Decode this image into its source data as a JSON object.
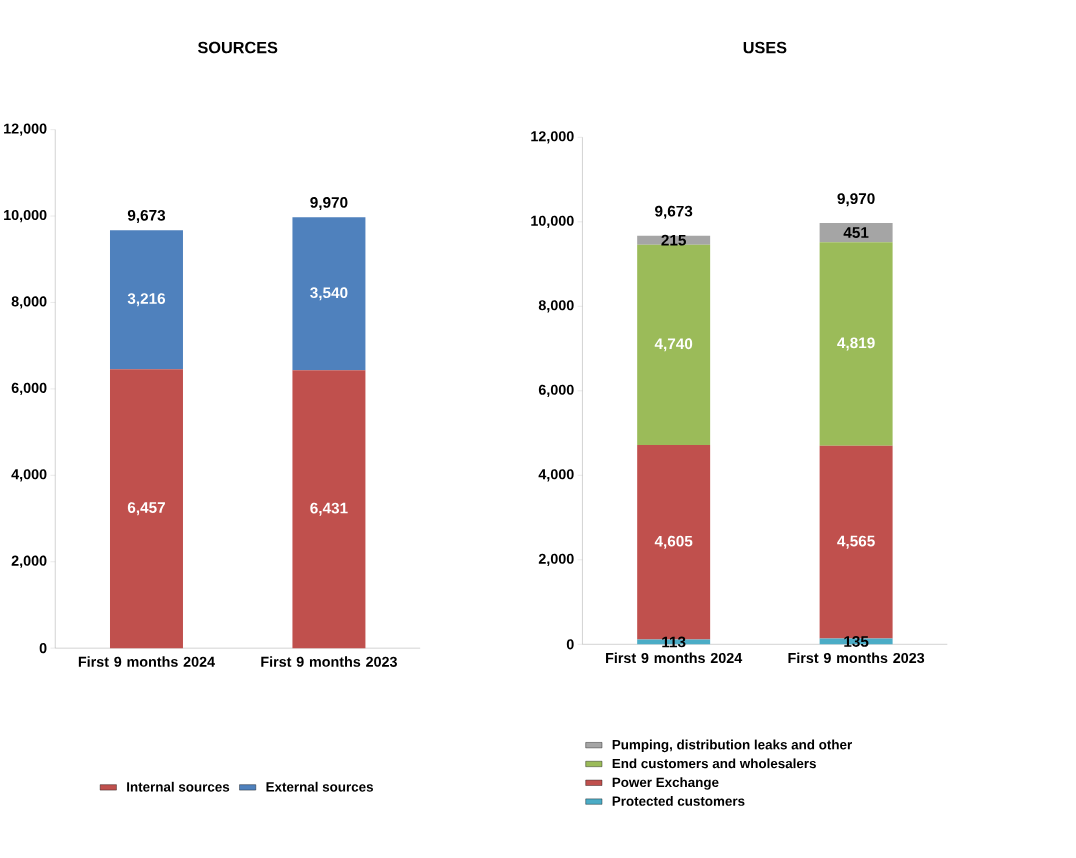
{
  "chart_data": [
    {
      "type": "bar",
      "stacked": true,
      "title": "SOURCES",
      "categories": [
        "First 9 months 2024",
        "First 9 months 2023"
      ],
      "series": [
        {
          "name": "Internal sources",
          "color": "#c0504d",
          "values": [
            6457,
            6431
          ],
          "value_labels": [
            "6,457",
            "6,431"
          ]
        },
        {
          "name": "External sources",
          "color": "#4f81bd",
          "values": [
            3216,
            3540
          ],
          "value_labels": [
            "3,216",
            "3,540"
          ]
        }
      ],
      "totals": [
        "9,673",
        "9,970"
      ],
      "ylim": [
        0,
        12000
      ],
      "yticks": [
        {
          "value": 0,
          "label": "0"
        },
        {
          "value": 2000,
          "label": "2,000"
        },
        {
          "value": 4000,
          "label": "4,000"
        },
        {
          "value": 6000,
          "label": "6,000"
        },
        {
          "value": 8000,
          "label": "8,000"
        },
        {
          "value": 10000,
          "label": "10,000"
        },
        {
          "value": 12000,
          "label": "12,000"
        }
      ],
      "legend": "bottom"
    },
    {
      "type": "bar",
      "stacked": true,
      "title": "USES",
      "categories": [
        "First 9 months 2024",
        "First 9 months 2023"
      ],
      "series": [
        {
          "name": "Protected customers",
          "color": "#4bacc6",
          "values": [
            113,
            135
          ],
          "value_labels": [
            "113",
            "135"
          ]
        },
        {
          "name": "Power Exchange",
          "color": "#c0504d",
          "values": [
            4605,
            4565
          ],
          "value_labels": [
            "4,605",
            "4,565"
          ]
        },
        {
          "name": "End customers and wholesalers",
          "color": "#9bbb59",
          "values": [
            4740,
            4819
          ],
          "value_labels": [
            "4,740",
            "4,819"
          ]
        },
        {
          "name": "Pumping, distribution leaks and other",
          "color": "#a5a5a5",
          "values": [
            215,
            451
          ],
          "value_labels": [
            "215",
            "451"
          ]
        }
      ],
      "totals": [
        "9,673",
        "9,970"
      ],
      "ylim": [
        0,
        12000
      ],
      "yticks": [
        {
          "value": 0,
          "label": "0"
        },
        {
          "value": 2000,
          "label": "2,000"
        },
        {
          "value": 4000,
          "label": "4,000"
        },
        {
          "value": 6000,
          "label": "6,000"
        },
        {
          "value": 8000,
          "label": "8,000"
        },
        {
          "value": 10000,
          "label": "10,000"
        },
        {
          "value": 12000,
          "label": "12,000"
        }
      ],
      "legend": "bottom"
    }
  ]
}
